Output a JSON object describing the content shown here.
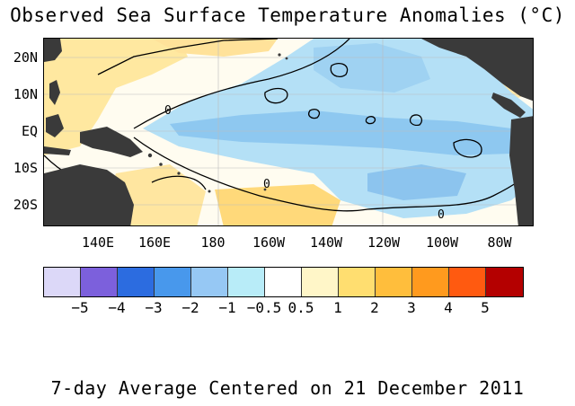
{
  "title": "Observed Sea Surface Temperature Anomalies (°C)",
  "footer": "7-day Average Centered on 21 December 2011",
  "map": {
    "lat_labels": [
      "20N",
      "10N",
      "EQ",
      "10S",
      "20S"
    ],
    "lon_labels": [
      "140E",
      "160E",
      "180",
      "160W",
      "140W",
      "120W",
      "100W",
      "80W"
    ],
    "contour_labels": [
      "0",
      "0",
      "0"
    ]
  },
  "colorbar": {
    "colors": [
      "#dcd8f8",
      "#7c60dc",
      "#2c6ce0",
      "#4898ec",
      "#96c8f4",
      "#b8ecf8",
      "#ffffff",
      "#fff6c8",
      "#ffde70",
      "#ffbe3c",
      "#ff9a1e",
      "#ff5a10",
      "#b40000"
    ],
    "labels": [
      "−5",
      "−4",
      "−3",
      "−2",
      "−1",
      "−0.5",
      "0.5",
      "1",
      "2",
      "3",
      "4",
      "5"
    ]
  },
  "colors": {
    "land": "#3a3a3a",
    "cool": "#a8d8f4",
    "cooler": "#7cbcec",
    "warm": "#ffe28c",
    "neutral": "#ffffff"
  }
}
